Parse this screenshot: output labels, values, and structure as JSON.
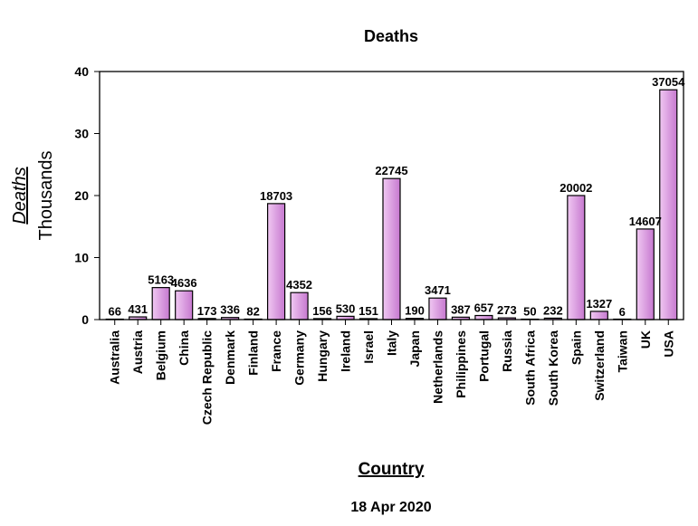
{
  "chart_data": {
    "type": "bar",
    "title": "Deaths",
    "ylabel": "Deaths",
    "ylabel_unit": "Thousands",
    "xlabel": "Country",
    "footer": "18 Apr 2020",
    "ylim": [
      0,
      40
    ],
    "yticks": [
      0,
      10,
      20,
      30,
      40
    ],
    "categories": [
      "Australia",
      "Austria",
      "Belgium",
      "China",
      "Czech Republic",
      "Denmark",
      "Finland",
      "France",
      "Germany",
      "Hungary",
      "Ireland",
      "Israel",
      "Italy",
      "Japan",
      "Netherlands",
      "Philippines",
      "Portugal",
      "Russia",
      "South Africa",
      "South Korea",
      "Spain",
      "Switzerland",
      "Taiwan",
      "UK",
      "USA"
    ],
    "values": [
      66,
      431,
      5163,
      4636,
      173,
      336,
      82,
      18703,
      4352,
      156,
      530,
      151,
      22745,
      190,
      3471,
      387,
      657,
      273,
      50,
      232,
      20002,
      1327,
      6,
      14607,
      37054
    ],
    "value_labels": [
      "66",
      "431",
      "5163",
      "4636",
      "173",
      "336",
      "82",
      "18703",
      "4352",
      "156",
      "530",
      "151",
      "22745",
      "190",
      "3471",
      "387",
      "657",
      "273",
      "50",
      "232",
      "20002",
      "1327",
      "6",
      "14607",
      "37054"
    ],
    "colors": {
      "bar_light": "#f0c8f2",
      "bar_dark": "#c678cf",
      "bar_edge": "#000000"
    },
    "grid": false,
    "legend": "none"
  }
}
